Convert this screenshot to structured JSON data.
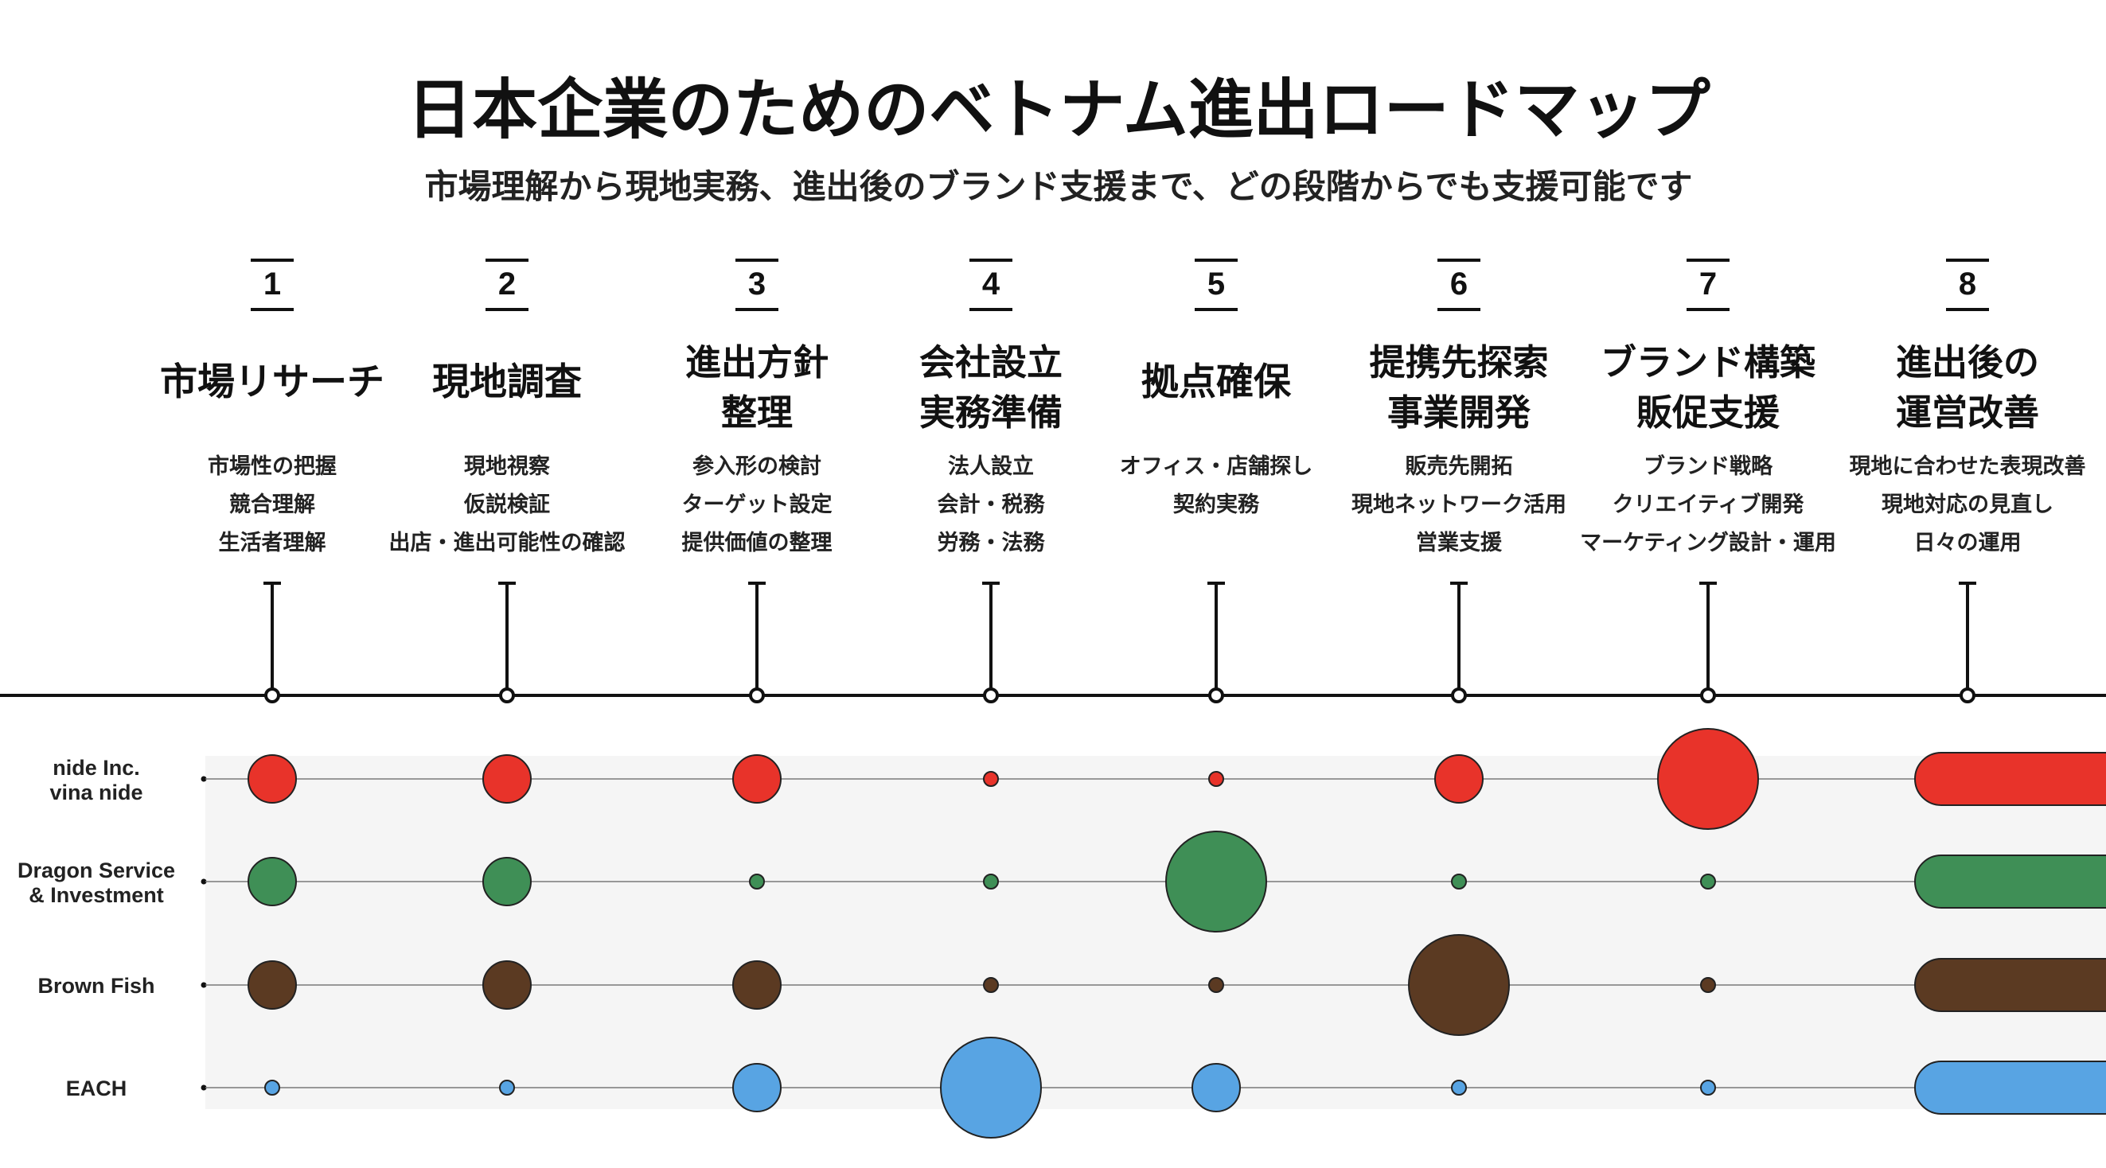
{
  "header": {
    "title": "日本企業のためのベトナム進出ロードマップ",
    "subtitle": "市場理解から現地実務、進出後のブランド支援まで、どの段階からでも支援可能です"
  },
  "steps": [
    {
      "number": "1",
      "title": [
        "市場リサーチ"
      ],
      "items": [
        "市場性の把握",
        "競合理解",
        "生活者理解"
      ]
    },
    {
      "number": "2",
      "title": [
        "現地調査"
      ],
      "items": [
        "現地視察",
        "仮説検証",
        "出店・進出可能性の確認"
      ]
    },
    {
      "number": "3",
      "title": [
        "進出方針",
        "整理"
      ],
      "items": [
        "参入形の検討",
        "ターゲット設定",
        "提供価値の整理"
      ]
    },
    {
      "number": "4",
      "title": [
        "会社設立",
        "実務準備"
      ],
      "items": [
        "法人設立",
        "会計・税務",
        "労務・法務"
      ]
    },
    {
      "number": "5",
      "title": [
        "拠点確保"
      ],
      "items": [
        "オフィス・店舗探し",
        "契約実務"
      ]
    },
    {
      "number": "6",
      "title": [
        "提携先探索",
        "事業開発"
      ],
      "items": [
        "販売先開拓",
        "現地ネットワーク活用",
        "営業支援"
      ]
    },
    {
      "number": "7",
      "title": [
        "ブランド構築",
        "販促支援"
      ],
      "items": [
        "ブランド戦略",
        "クリエイティブ開発",
        "マーケティング設計・運用"
      ]
    },
    {
      "number": "8",
      "title": [
        "進出後の",
        "運営改善"
      ],
      "items": [
        "現地に合わせた表現改善",
        "現地対応の見直し",
        "日々の運用"
      ]
    }
  ],
  "companies": [
    {
      "label": [
        "nide Inc.",
        "vina nide"
      ],
      "color": "#e8332a",
      "levels": [
        2,
        2,
        2,
        1,
        1,
        2,
        4,
        "ongoing"
      ]
    },
    {
      "label": [
        "Dragon Service",
        "& Investment"
      ],
      "color": "#3f8f56",
      "levels": [
        2,
        2,
        1,
        1,
        4,
        1,
        1,
        "ongoing"
      ]
    },
    {
      "label": [
        "Brown Fish"
      ],
      "color": "#5b3a22",
      "levels": [
        2,
        2,
        2,
        1,
        1,
        4,
        1,
        "ongoing"
      ]
    },
    {
      "label": [
        "EACH"
      ],
      "color": "#58a4e3",
      "levels": [
        1,
        1,
        2,
        4,
        2,
        1,
        1,
        "ongoing"
      ]
    }
  ],
  "colors": {
    "text": "#111111",
    "line": "#111111",
    "band": "#f5f5f5"
  }
}
